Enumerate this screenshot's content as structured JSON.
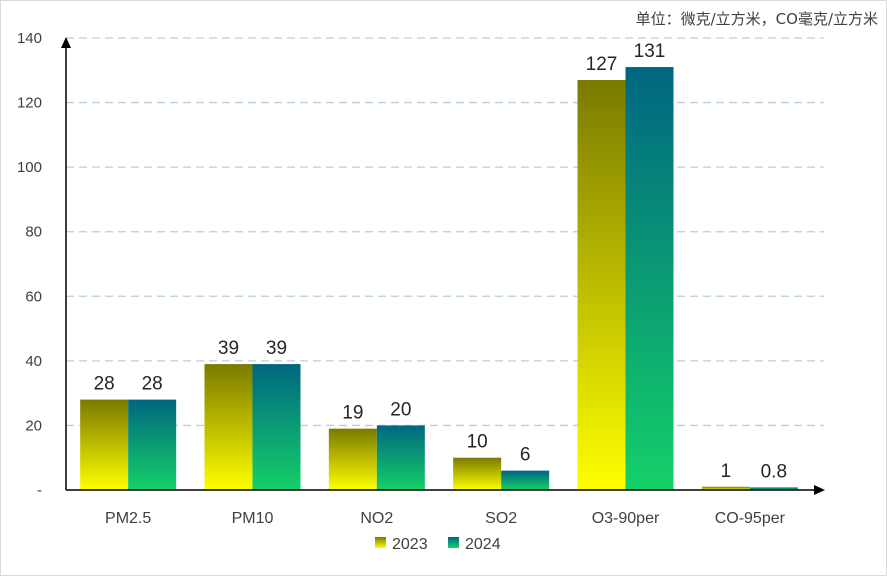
{
  "chart_data": {
    "type": "bar",
    "unit_label": "单位：微克/立方米，CO毫克/立方米",
    "categories": [
      "PM2.5",
      "PM10",
      "NO2",
      "SO2",
      "O3-90per",
      "CO-95per"
    ],
    "series": [
      {
        "name": "2023",
        "values": [
          28,
          39,
          19,
          10,
          127,
          1
        ],
        "labels": [
          "28",
          "39",
          "19",
          "10",
          "127",
          "1"
        ]
      },
      {
        "name": "2024",
        "values": [
          28,
          39,
          20,
          6,
          131,
          0.8
        ],
        "labels": [
          "28",
          "39",
          "20",
          "6",
          "131",
          "0.8"
        ]
      }
    ],
    "ylim": [
      0,
      140
    ],
    "yticks": [
      {
        "value": 0,
        "label": "-"
      },
      {
        "value": 20,
        "label": "20"
      },
      {
        "value": 40,
        "label": "40"
      },
      {
        "value": 60,
        "label": "60"
      },
      {
        "value": 80,
        "label": "80"
      },
      {
        "value": 100,
        "label": "100"
      },
      {
        "value": 120,
        "label": "120"
      },
      {
        "value": 140,
        "label": "140"
      }
    ],
    "grid": true,
    "gridline_style": "dashed",
    "legend_position": "bottom",
    "colors": {
      "2023": {
        "top": "#7a7a00",
        "bottom": "#ffff00"
      },
      "2024": {
        "top": "#006680",
        "bottom": "#15d068"
      },
      "grid": "#b8cfe0",
      "axis": "#000000"
    }
  }
}
